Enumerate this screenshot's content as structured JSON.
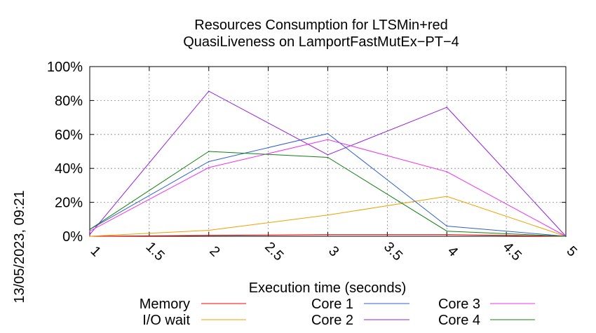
{
  "chart_data": {
    "type": "line",
    "title": "Resources Consumption for LTSMin+red",
    "subtitle": "QuasiLiveness on LamportFastMutEx−PT−4",
    "xlabel": "Execution time (seconds)",
    "ylabel": "",
    "xlim": [
      1,
      5
    ],
    "ylim": [
      0,
      100
    ],
    "xticks": [
      1,
      1.5,
      2,
      2.5,
      3,
      3.5,
      4,
      4.5,
      5
    ],
    "xtick_labels": [
      "1",
      "1.5",
      "2",
      "2.5",
      "3",
      "3.5",
      "4",
      "4.5",
      "5"
    ],
    "yticks": [
      0,
      20,
      40,
      60,
      80,
      100
    ],
    "ytick_labels": [
      "0%",
      "20%",
      "40%",
      "60%",
      "80%",
      "100%"
    ],
    "grid": true,
    "legend_position": "bottom",
    "x": [
      1,
      2,
      3,
      4,
      5
    ],
    "series": [
      {
        "name": "Memory",
        "color": "#ff0000",
        "values": [
          0,
          0.5,
          1,
          1,
          0
        ]
      },
      {
        "name": "I/O wait",
        "color": "#f0a000",
        "values": [
          0,
          3.5,
          12.5,
          23.5,
          0
        ]
      },
      {
        "name": "Core 1",
        "color": "#3060d0",
        "values": [
          4,
          44,
          60.5,
          6,
          0
        ]
      },
      {
        "name": "Core 2",
        "color": "#9020e0",
        "values": [
          1,
          85.5,
          48,
          76,
          0
        ]
      },
      {
        "name": "Core 3",
        "color": "#f030f0",
        "values": [
          3,
          40.5,
          57,
          38,
          0
        ]
      },
      {
        "name": "Core 4",
        "color": "#108010",
        "values": [
          4,
          50,
          46.5,
          3,
          0
        ]
      }
    ]
  },
  "timestamp": "13/05/2023, 09:21"
}
